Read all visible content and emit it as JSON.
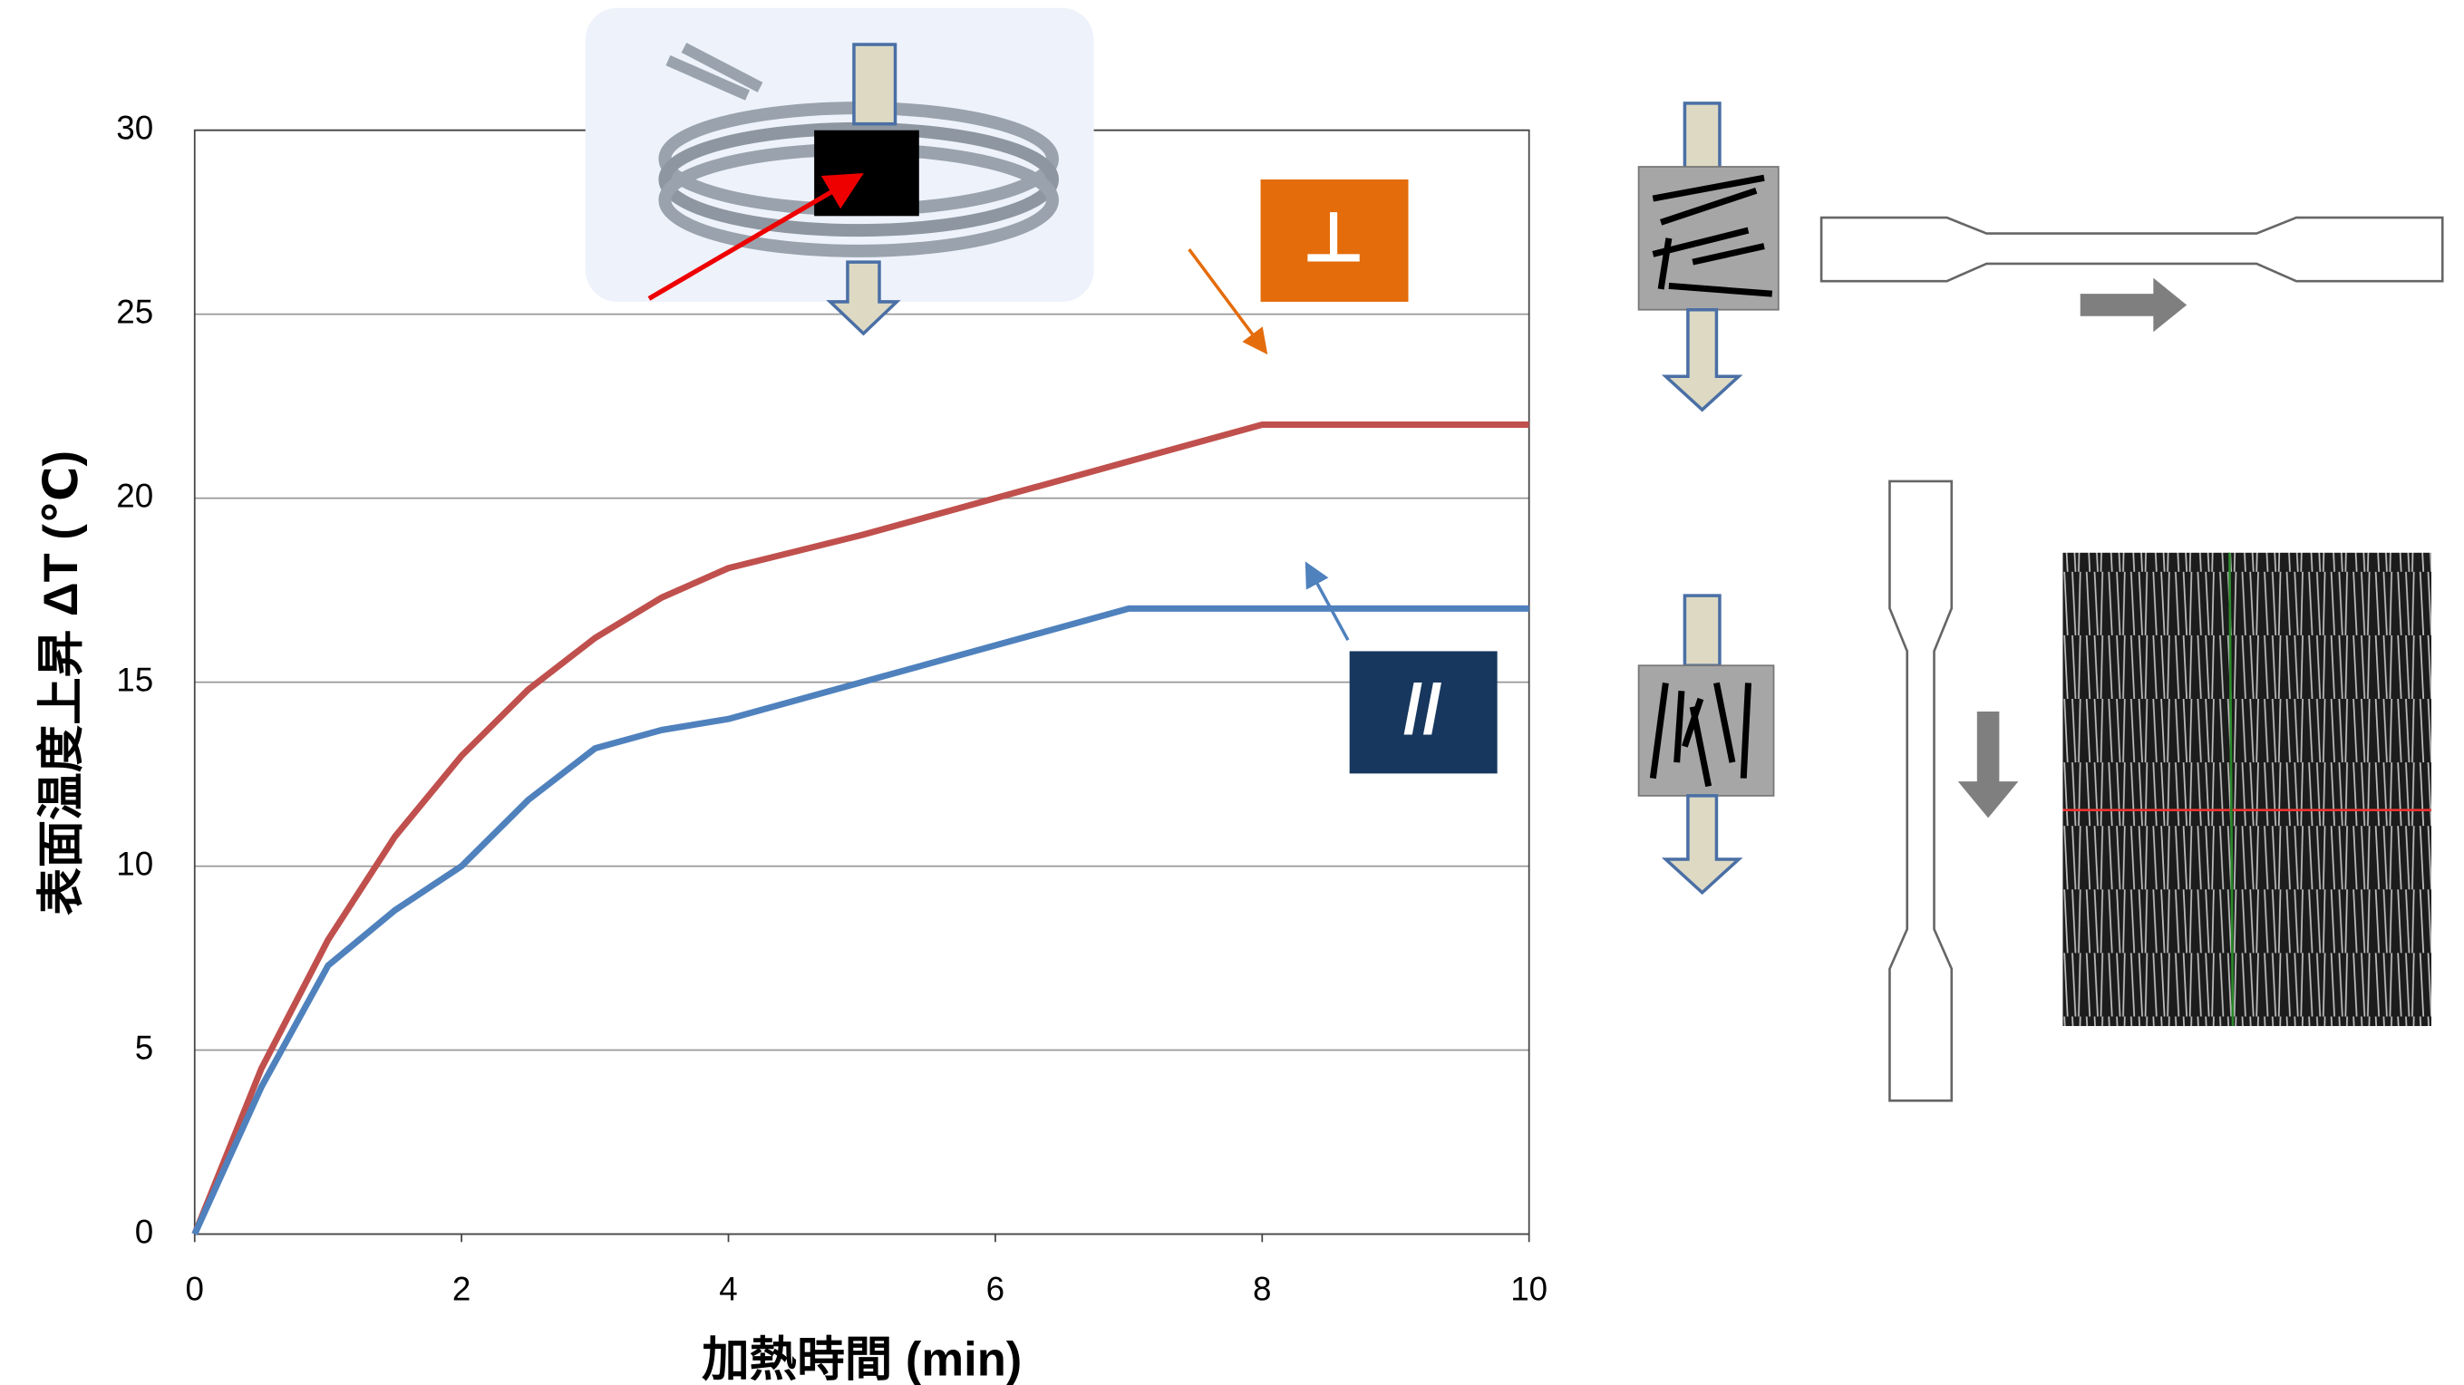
{
  "chart_data": {
    "type": "line",
    "x_label": "加熱時間 (min)",
    "y_label": "表面温度上昇 ΔT (℃)",
    "x": [
      0,
      0.5,
      1,
      1.5,
      2,
      2.5,
      3,
      3.5,
      4,
      5,
      6,
      7,
      8,
      9,
      10
    ],
    "series": [
      {
        "name": "⊥",
        "color": "#c0504d",
        "values": [
          0,
          4.5,
          8,
          10.8,
          13,
          14.8,
          16.2,
          17.3,
          18.1,
          19,
          20,
          21,
          22,
          22,
          22
        ]
      },
      {
        "name": "//",
        "color": "#4f81bd",
        "values": [
          0,
          4,
          7.3,
          8.8,
          10,
          11.8,
          13.2,
          13.7,
          14,
          15,
          16,
          17,
          17,
          17,
          17
        ]
      }
    ],
    "xlim": [
      0,
      10
    ],
    "xticks": [
      0,
      2,
      4,
      6,
      8,
      10
    ],
    "ylim": [
      0,
      30
    ],
    "yticks": [
      0,
      5,
      10,
      15,
      20,
      25,
      30
    ],
    "grid": true
  }
}
